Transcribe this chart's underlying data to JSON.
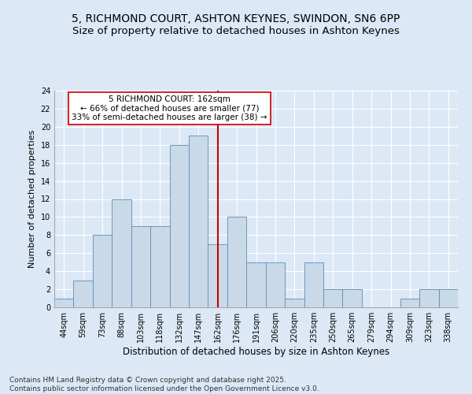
{
  "title1": "5, RICHMOND COURT, ASHTON KEYNES, SWINDON, SN6 6PP",
  "title2": "Size of property relative to detached houses in Ashton Keynes",
  "xlabel": "Distribution of detached houses by size in Ashton Keynes",
  "ylabel": "Number of detached properties",
  "categories": [
    "44sqm",
    "59sqm",
    "73sqm",
    "88sqm",
    "103sqm",
    "118sqm",
    "132sqm",
    "147sqm",
    "162sqm",
    "176sqm",
    "191sqm",
    "206sqm",
    "220sqm",
    "235sqm",
    "250sqm",
    "265sqm",
    "279sqm",
    "294sqm",
    "309sqm",
    "323sqm",
    "338sqm"
  ],
  "values": [
    1,
    3,
    8,
    12,
    9,
    9,
    18,
    19,
    7,
    10,
    5,
    5,
    1,
    5,
    2,
    2,
    0,
    0,
    1,
    2,
    2
  ],
  "bar_color": "#c9d9e8",
  "bar_edge_color": "#5b8db8",
  "background_color": "#dce8f5",
  "grid_color": "#ffffff",
  "fig_background_color": "#dce8f5",
  "annotation_text": "5 RICHMOND COURT: 162sqm\n← 66% of detached houses are smaller (77)\n33% of semi-detached houses are larger (38) →",
  "vline_index": 8,
  "vline_color": "#cc0000",
  "annotation_box_edge_color": "#cc0000",
  "ylim": [
    0,
    24
  ],
  "yticks": [
    0,
    2,
    4,
    6,
    8,
    10,
    12,
    14,
    16,
    18,
    20,
    22,
    24
  ],
  "footer": "Contains HM Land Registry data © Crown copyright and database right 2025.\nContains public sector information licensed under the Open Government Licence v3.0.",
  "title1_fontsize": 10,
  "title2_fontsize": 9.5,
  "xlabel_fontsize": 8.5,
  "ylabel_fontsize": 8,
  "tick_fontsize": 7,
  "annotation_fontsize": 7.5,
  "footer_fontsize": 6.5
}
